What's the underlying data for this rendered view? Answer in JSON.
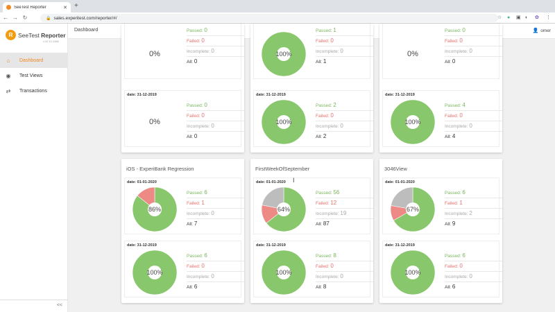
{
  "browser": {
    "tab_title": "SeeTest Reporter",
    "url": "sales.experitest.com/reporter/#/"
  },
  "app": {
    "logo_text_regular": "SeeTest",
    "logo_text_bold": "Reporter",
    "version": "v.12.12.1168",
    "page_title": "Dashboard",
    "user": "omer",
    "collapse_glyph": "<<"
  },
  "sidebar": {
    "items": [
      {
        "label": "Dashboard",
        "icon": "home-icon",
        "active": true
      },
      {
        "label": "Test Views",
        "icon": "eye-icon",
        "active": false
      },
      {
        "label": "Transactions",
        "icon": "swap-arrows-icon",
        "active": false
      }
    ]
  },
  "labels": {
    "passed": "Passed:",
    "failed": "Failed:",
    "incomplete": "Incomplete:",
    "all": "All:"
  },
  "colors": {
    "passed": "#88c76b",
    "failed": "#ee8a86",
    "incomplete": "#bdbdbd",
    "accent": "#f08a24"
  },
  "cards": [
    {
      "title": "",
      "sections": [
        {
          "date": "",
          "pct": "0%",
          "passed": 0,
          "failed": 0,
          "incomplete": 0,
          "all": 0
        },
        {
          "date": "date: 31-12-2019",
          "pct": "0%",
          "passed": 0,
          "failed": 0,
          "incomplete": 0,
          "all": 0
        }
      ]
    },
    {
      "title": "",
      "sections": [
        {
          "date": "",
          "pct": "100%",
          "passed": 1,
          "failed": 0,
          "incomplete": 0,
          "all": 1
        },
        {
          "date": "date: 31-12-2019",
          "pct": "100%",
          "passed": 2,
          "failed": 0,
          "incomplete": 0,
          "all": 2
        }
      ]
    },
    {
      "title": "",
      "sections": [
        {
          "date": "",
          "pct": "0%",
          "passed": 0,
          "failed": 0,
          "incomplete": 0,
          "all": 0
        },
        {
          "date": "date: 31-12-2019",
          "pct": "100%",
          "passed": 4,
          "failed": 0,
          "incomplete": 0,
          "all": 4
        }
      ]
    },
    {
      "title": "iOS - ExperiBank Regression",
      "sections": [
        {
          "date": "date: 01-01-2020",
          "pct": "86%",
          "passed": 6,
          "failed": 1,
          "incomplete": 0,
          "all": 7
        },
        {
          "date": "date: 31-12-2019",
          "pct": "100%",
          "passed": 6,
          "failed": 0,
          "incomplete": 0,
          "all": 6
        }
      ]
    },
    {
      "title": "FirstWeekOfSeptember",
      "sections": [
        {
          "date": "date: 01-01-2020",
          "pct": "64%",
          "passed": 56,
          "failed": 12,
          "incomplete": 19,
          "all": 87
        },
        {
          "date": "date: 31-12-2019",
          "pct": "100%",
          "passed": 8,
          "failed": 0,
          "incomplete": 0,
          "all": 8
        }
      ]
    },
    {
      "title": "3046View",
      "sections": [
        {
          "date": "date: 01-01-2020",
          "pct": "67%",
          "passed": 6,
          "failed": 1,
          "incomplete": 2,
          "all": 9
        },
        {
          "date": "date: 31-12-2019",
          "pct": "100%",
          "passed": 6,
          "failed": 0,
          "incomplete": 0,
          "all": 6
        }
      ]
    }
  ]
}
